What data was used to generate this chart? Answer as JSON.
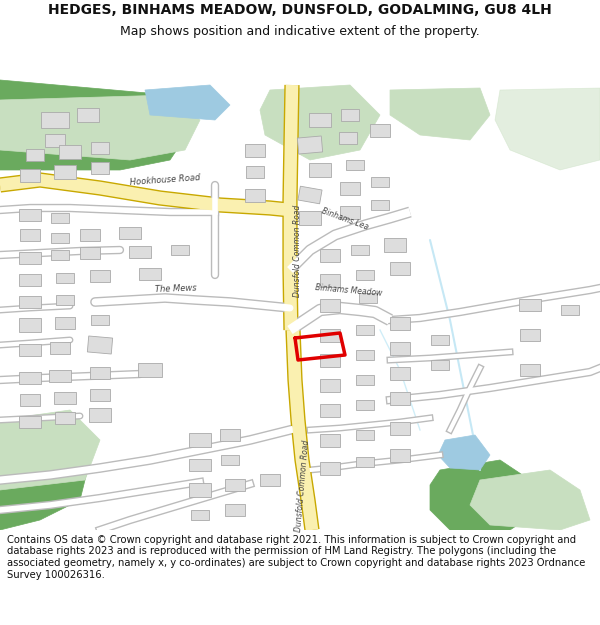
{
  "title": "HEDGES, BINHAMS MEADOW, DUNSFOLD, GODALMING, GU8 4LH",
  "subtitle": "Map shows position and indicative extent of the property.",
  "footer": "Contains OS data © Crown copyright and database right 2021. This information is subject to Crown copyright and database rights 2023 and is reproduced with the permission of HM Land Registry. The polygons (including the associated geometry, namely x, y co-ordinates) are subject to Crown copyright and database rights 2023 Ordnance Survey 100026316.",
  "bg_color": "#ffffff",
  "map_bg": "#ffffff",
  "road_yellow_fill": "#faf0b0",
  "road_yellow_border": "#c8a800",
  "road_gray_border": "#bbbbbb",
  "road_gray_fill": "#ffffff",
  "green_dark": "#6aaa5e",
  "green_light": "#c8dfc0",
  "blue_water": "#9ecae1",
  "blue_stream": "#c6e8f5",
  "building_fill": "#dddddd",
  "building_edge": "#aaaaaa",
  "highlight_red": "#e00000",
  "text_road": "#444444",
  "title_fontsize": 10,
  "subtitle_fontsize": 9,
  "footer_fontsize": 7.2
}
